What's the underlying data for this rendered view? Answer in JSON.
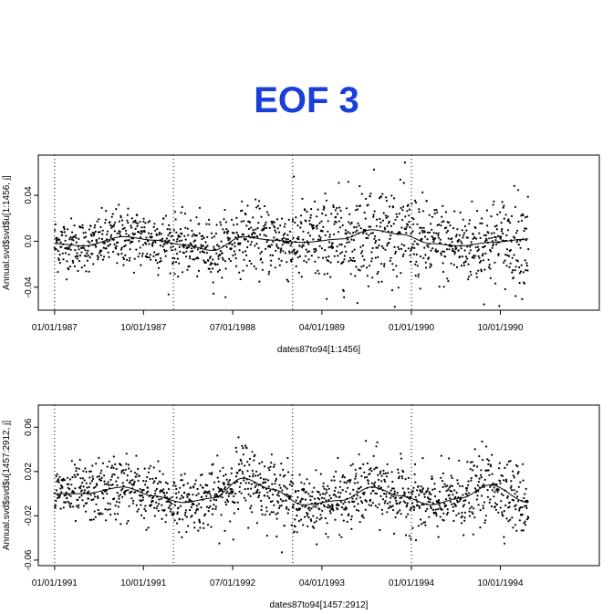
{
  "title": "EOF 3",
  "chart_data": [
    {
      "type": "scatter",
      "xlabel": "dates87to94[1:1456]",
      "ylabel": "Annual.svd$svd$u[1:1456, j]",
      "ylim": [
        -0.06,
        0.075
      ],
      "yticks": [
        -0.04,
        0.0,
        0.04
      ],
      "ytick_labels": [
        "-0.04",
        "0.0",
        "0.04"
      ],
      "x_start": "01/01/1987",
      "x_end": "12/26/1990",
      "xlim_dates": [
        "11/12/1986",
        "08/01/1991"
      ],
      "xticks": [
        "01/01/1987",
        "10/01/1987",
        "07/01/1988",
        "04/01/1989",
        "01/01/1990",
        "10/01/1990"
      ],
      "year_lines": [
        "01/01/1987",
        "01/01/1988",
        "01/01/1989",
        "01/01/1990"
      ],
      "n_points": 1456,
      "smooth_knots": {
        "dates": [
          "01/01/1987",
          "04/01/1987",
          "08/01/1987",
          "11/01/1987",
          "02/01/1988",
          "05/01/1988",
          "08/01/1988",
          "11/01/1988",
          "02/01/1989",
          "06/01/1989",
          "09/01/1989",
          "12/01/1989",
          "03/01/1990",
          "06/01/1990",
          "09/01/1990",
          "12/26/1990"
        ],
        "values": [
          -0.002,
          -0.004,
          0.004,
          0.001,
          -0.003,
          -0.008,
          0.004,
          0.001,
          -0.001,
          0.002,
          0.01,
          0.006,
          -0.002,
          -0.004,
          -0.001,
          0.002
        ]
      },
      "noise_sd": [
        0.012,
        0.011,
        0.013,
        0.014,
        0.012,
        0.013,
        0.014,
        0.015,
        0.018,
        0.02,
        0.022,
        0.02,
        0.018,
        0.017,
        0.019,
        0.02
      ],
      "vertical_lines": "dotted"
    },
    {
      "type": "scatter",
      "xlabel": "dates87to94[1457:2912]",
      "ylabel": "Annual.svd$svd$u[1457:2912, j]",
      "ylim": [
        -0.065,
        0.08
      ],
      "yticks": [
        -0.06,
        -0.02,
        0.02,
        0.06
      ],
      "ytick_labels": [
        "-0.06",
        "-0.02",
        "0.02",
        "0.06"
      ],
      "x_start": "01/01/1991",
      "x_end": "12/26/1994",
      "xlim_dates": [
        "11/12/1990",
        "08/01/1995"
      ],
      "xticks": [
        "01/01/1991",
        "10/01/1991",
        "07/01/1992",
        "04/01/1993",
        "01/01/1994",
        "10/01/1994"
      ],
      "year_lines": [
        "01/01/1991",
        "01/01/1992",
        "01/01/1993",
        "01/01/1994"
      ],
      "n_points": 1456,
      "smooth_knots": {
        "dates": [
          "01/01/1991",
          "04/01/1991",
          "08/01/1991",
          "11/01/1991",
          "02/01/1992",
          "05/01/1992",
          "08/01/1992",
          "11/01/1992",
          "02/01/1993",
          "06/01/1993",
          "09/01/1993",
          "12/01/1993",
          "03/01/1994",
          "06/01/1994",
          "09/01/1994",
          "12/26/1994"
        ],
        "values": [
          0.0,
          0.0,
          0.006,
          -0.002,
          -0.008,
          -0.004,
          0.014,
          0.004,
          -0.01,
          -0.006,
          0.006,
          -0.002,
          -0.01,
          -0.004,
          0.008,
          -0.008
        ]
      },
      "noise_sd": [
        0.012,
        0.013,
        0.015,
        0.014,
        0.012,
        0.014,
        0.017,
        0.015,
        0.012,
        0.014,
        0.016,
        0.014,
        0.014,
        0.015,
        0.016,
        0.016
      ],
      "vertical_lines": "dotted"
    }
  ]
}
